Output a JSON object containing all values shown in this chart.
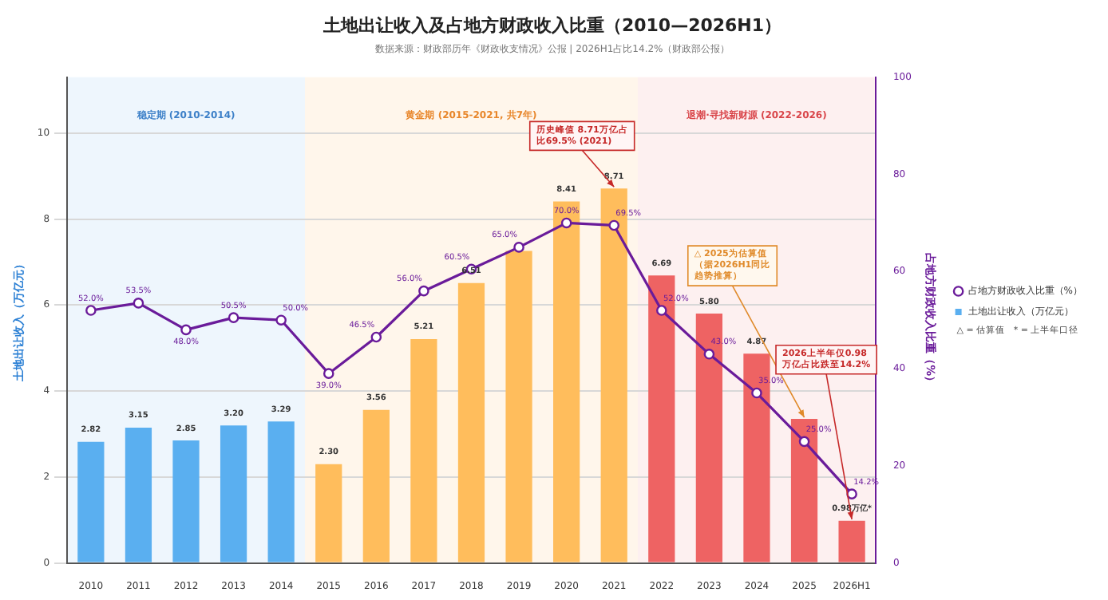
{
  "chart_data": {
    "type": "bar",
    "title": "土地出让收入及占地方财政收入比重（2010—2026H1）",
    "subtitle": "数据来源：财政部历年《财政收支情况》公报 | 2026H1占比14.2%（财政部公报）",
    "ylabel": "土地出让收入（万亿元）",
    "y2label": "占地方财政收入比重（%）",
    "categories": [
      "2010",
      "2011",
      "2012",
      "2013",
      "2014",
      "2015",
      "2016",
      "2017",
      "2018",
      "2019",
      "2020",
      "2021",
      "2022",
      "2023",
      "2024",
      "2025",
      "2026H1"
    ],
    "series": [
      {
        "name": "土地出让收入（万亿元）",
        "colors": [
          "#5aaff0",
          "#5aaff0",
          "#5aaff0",
          "#5aaff0",
          "#5aaff0",
          "#ffbd5c",
          "#ffbd5c",
          "#ffbd5c",
          "#ffbd5c",
          "#ffbd5c",
          "#ffbd5c",
          "#ffbd5c",
          "#ee6363",
          "#ee6363",
          "#ee6363",
          "#ee6363",
          "#ee6363"
        ],
        "values": [
          2.82,
          3.15,
          2.85,
          3.2,
          3.29,
          2.3,
          3.56,
          5.21,
          6.51,
          7.26,
          8.41,
          8.71,
          6.69,
          5.8,
          4.87,
          3.35,
          0.98
        ],
        "value_labels": [
          "2.82",
          "3.15",
          "2.85",
          "3.20",
          "3.29",
          "2.30",
          "3.56",
          "5.21",
          "6.51",
          null,
          "8.41",
          "8.71",
          "6.69",
          "5.80",
          "4.87",
          null,
          "0.98万亿*"
        ]
      },
      {
        "name": "占地方财政收入比重（%）",
        "type": "line",
        "axis": "y2",
        "color": "#6a1b9a",
        "values": [
          52.0,
          53.5,
          48.0,
          50.5,
          50.0,
          39.0,
          46.5,
          56.0,
          60.5,
          65.0,
          70.0,
          69.5,
          52.0,
          43.0,
          35.0,
          25.0,
          14.2
        ],
        "value_labels": [
          "52.0%",
          "53.5%",
          "48.0%",
          "50.5%",
          "50.0%",
          "39.0%",
          "46.5%",
          "56.0%",
          "60.5%",
          "65.0%",
          "70.0%",
          "69.5%",
          "52.0%",
          "43.0%",
          "35.0%",
          "25.0%",
          "14.2%"
        ]
      }
    ],
    "ylim": [
      0,
      11.3
    ],
    "yticks": [
      0,
      2,
      4,
      6,
      8,
      10
    ],
    "y2lim": [
      0,
      100
    ],
    "y2ticks": [
      0,
      20,
      40,
      60,
      80,
      100
    ],
    "bands": [
      {
        "axis": "x",
        "from": "2010",
        "to": "2014",
        "label": "稳定期 (2010-2014)",
        "color": "#eef6fd"
      },
      {
        "axis": "x",
        "from": "2015",
        "to": "2021",
        "label": "黄金期 (2015-2021, 共7年)",
        "color": "#fff6eb"
      },
      {
        "axis": "x",
        "from": "2022",
        "to": "2026H1",
        "label": "退潮·寻找新财源 (2022-2026)",
        "color": "#fdf0f0"
      }
    ],
    "annotations": [
      {
        "text": "历史峰值 8.71万亿占比69.5% (2021)",
        "x": "2021",
        "y": 8.71
      },
      {
        "text": "△ 2025为估算值（据2026H1同比趋势推算）",
        "x": "2025",
        "y": 3.35
      },
      {
        "text": "2026上半年仅0.98万亿占比跌至14.2%",
        "x": "2026H1",
        "y": 0.98
      },
      "△ = 估算值   * = 上半年口径"
    ],
    "grid": "y",
    "legend": "right",
    "marker": "circle",
    "line_style": "solid"
  }
}
